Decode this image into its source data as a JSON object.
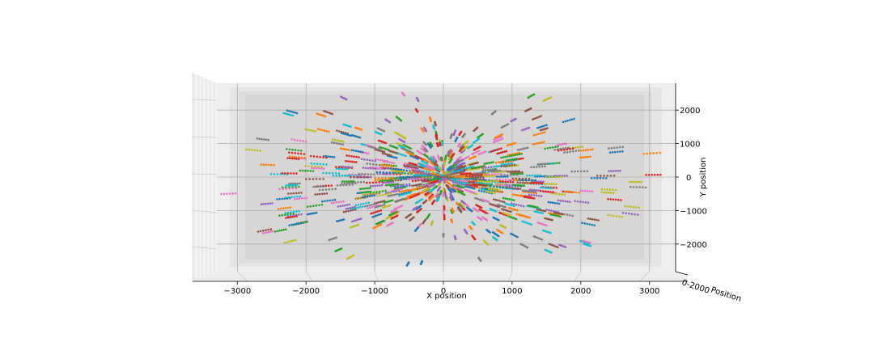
{
  "chart_data": {
    "type": "scatter",
    "projection": "3d",
    "title": "",
    "xlabel": "X position",
    "ylabel": "Y position",
    "zlabel": "Z position",
    "z_axis_visible_label": "Position",
    "z_axis_overlap_ticks": "0-2000",
    "xlim": [
      -3600,
      3600
    ],
    "ylim": [
      -2850,
      2850
    ],
    "x_ticks": [
      -3000,
      -2000,
      -1000,
      0,
      1000,
      2000,
      3000
    ],
    "y_ticks": [
      2000,
      1000,
      0,
      -1000,
      -2000
    ],
    "x_tick_labels": [
      "−3000",
      "−2000",
      "−1000",
      "0",
      "1000",
      "2000",
      "3000"
    ],
    "y_tick_labels": [
      "2000",
      "1000",
      "0",
      "−1000",
      "−2000"
    ],
    "grid": true,
    "legend": "none",
    "description_of_series": "Many short streaks of particle trajectories radiating from the origin, drawn with the default 10-color cycle",
    "series_colors": [
      "#1f77b4",
      "#ff7f0e",
      "#2ca02c",
      "#d62728",
      "#9467bd",
      "#8c564b",
      "#e377c2",
      "#7f7f7f",
      "#bcbd22",
      "#17becf"
    ],
    "num_tracks": 700,
    "points_per_track": 6
  },
  "colors": {
    "pane_back": "#d8d6d4",
    "pane_side": "#f0f0f0",
    "pane_floor": "#e8e8e8",
    "grid": "#b0b0b0",
    "axis": "#000000"
  }
}
